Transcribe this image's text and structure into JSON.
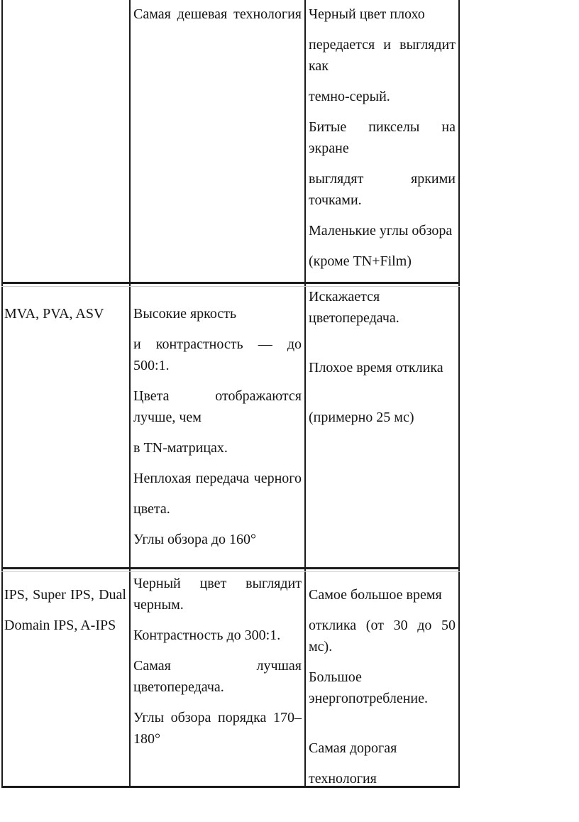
{
  "page": {
    "background_color": "#ffffff",
    "text_color": "#141414",
    "border_color": "#1b1b1b",
    "border_echo_color": "#cfcfcf"
  },
  "table": {
    "description": "comparison-of-lcd-matrix-technologies",
    "rows": [
      {
        "id": "row-tn-continued",
        "technology_lines": [],
        "pros_lines": [
          "Самая дешевая технология"
        ],
        "cons_lines": [
          "Черный цвет плохо",
          "передается и выглядит",
          "как",
          "темно-серый.",
          "Битые пикселы на",
          "экране",
          "выглядят яркими",
          "точками.",
          "Маленькие углы обзора",
          "(кроме TN+Film)"
        ]
      },
      {
        "id": "row-mva",
        "technology_lines": [
          "MVA, PVA, ASV"
        ],
        "pros_lines": [
          "Высокие яркость",
          "и контрастность — до",
          "500:1.",
          "Цвета отображаются",
          "лучше, чем",
          "в TN-матрицах.",
          "Неплохая передача черного",
          "цвета.",
          "Углы обзора до 160°"
        ],
        "cons_lines": [
          "Искажается",
          "цветопередача.",
          "Плохое время отклика",
          "(примерно 25 мс)"
        ]
      },
      {
        "id": "row-ips",
        "technology_lines": [
          "IPS, Super IPS, Dual",
          "Domain IPS, A-IPS"
        ],
        "pros_lines": [
          "Черный цвет выглядит",
          "черным.",
          "Контрастность до 300:1.",
          "Самая лучшая",
          "цветопередача.",
          "Углы обзора порядка 170–",
          "180°"
        ],
        "cons_lines": [
          "Самое большое время",
          "отклика (от 30 до 50 мс).",
          "Большое",
          "энергопотребление.",
          "Самая дорогая",
          "технология"
        ]
      }
    ]
  }
}
